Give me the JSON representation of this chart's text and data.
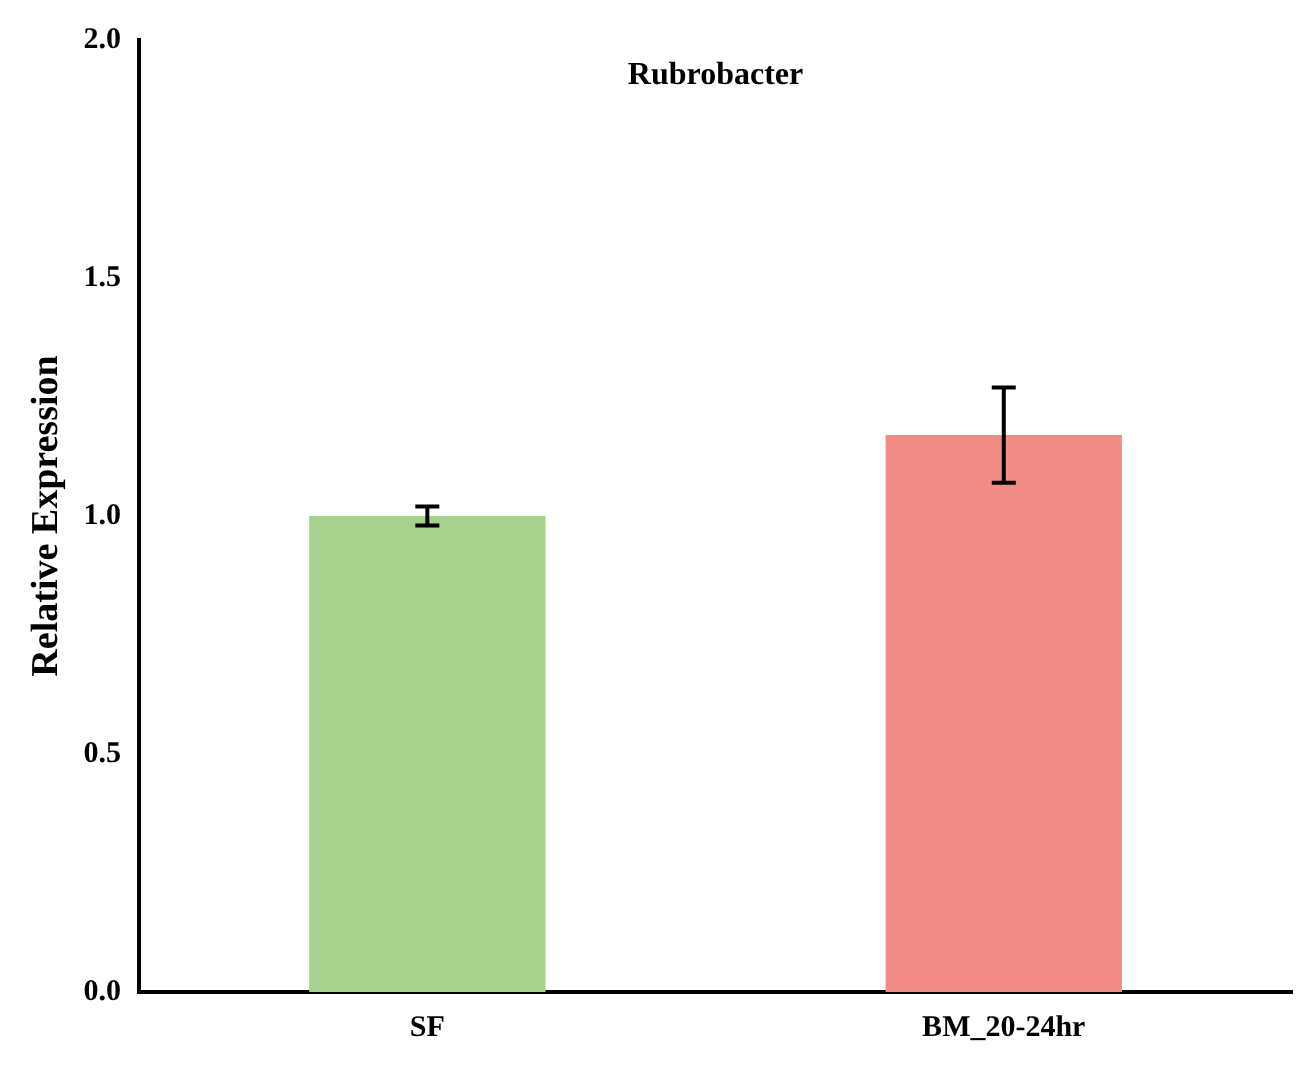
{
  "chart_data": {
    "type": "bar",
    "title": "Rubrobacter",
    "ylabel": "Relative Expression",
    "categories": [
      "SF",
      "BM_20-24hr"
    ],
    "values": [
      1.0,
      1.17
    ],
    "colors": [
      "#a9d18e",
      "#f28c86"
    ],
    "errors": [
      0.02,
      0.1
    ],
    "ylim": [
      0,
      2.0
    ],
    "yticks": [
      {
        "value": 0,
        "label": "0.0"
      },
      {
        "value": 0.5,
        "label": "0.5"
      },
      {
        "value": 1,
        "label": "1.0"
      },
      {
        "value": 1.5,
        "label": "1.5"
      },
      {
        "value": 2,
        "label": "2.0"
      }
    ],
    "grid": false,
    "legend": false
  }
}
